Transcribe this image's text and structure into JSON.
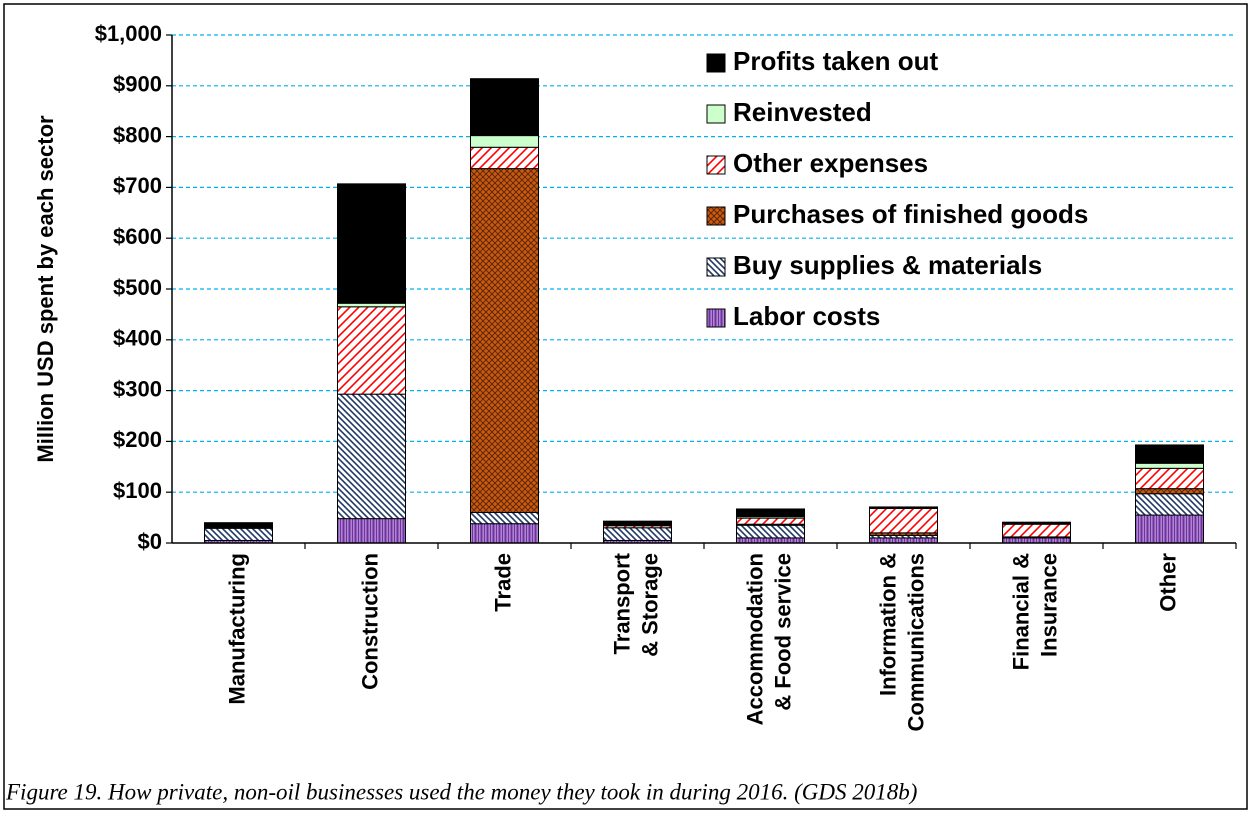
{
  "chart_data": {
    "type": "stacked_bar",
    "ylabel": "Million USD spent by each sector",
    "caption": "Figure 19. How private, non-oil businesses used the money they took in during 2016. (GDS 2018b)",
    "categories": [
      "Manufacturing",
      "Construction",
      "Trade",
      "Transport\n& Storage",
      "Accommodation\n& Food service",
      "Information &\nCommunications",
      "Financial &\nInsurance",
      "Other"
    ],
    "series": [
      {
        "name": "Labor costs",
        "color": "#7030a0",
        "pattern": "vertical",
        "values": [
          5,
          48,
          38,
          5,
          10,
          10,
          10,
          55
        ]
      },
      {
        "name": "Buy supplies & materials",
        "color": "#1f3864",
        "pattern": "diagonal",
        "values": [
          24,
          245,
          22,
          25,
          25,
          5,
          2,
          42
        ]
      },
      {
        "name": "Purchases of finished goods",
        "color": "#c55a11",
        "pattern": "crosshatch",
        "values": [
          0,
          0,
          677,
          0,
          2,
          5,
          0,
          10
        ]
      },
      {
        "name": "Other expenses",
        "color": "#ff0000",
        "pattern": "backdiagonal",
        "values": [
          2,
          172,
          42,
          4,
          12,
          48,
          25,
          40
        ]
      },
      {
        "name": "Reinvested",
        "color": "#ccffcc",
        "pattern": "solid",
        "values": [
          1,
          7,
          23,
          1,
          3,
          1,
          1,
          10
        ]
      },
      {
        "name": "Profits taken out",
        "color": "#000000",
        "pattern": "solid",
        "values": [
          8,
          235,
          112,
          8,
          15,
          2,
          3,
          36
        ]
      }
    ],
    "ylim": [
      0,
      1000
    ],
    "yticks": [
      {
        "value": 0,
        "label": "$0"
      },
      {
        "value": 100,
        "label": "$100"
      },
      {
        "value": 200,
        "label": "$200"
      },
      {
        "value": 300,
        "label": "$300"
      },
      {
        "value": 400,
        "label": "$400"
      },
      {
        "value": 500,
        "label": "$500"
      },
      {
        "value": 600,
        "label": "$600"
      },
      {
        "value": 700,
        "label": "$700"
      },
      {
        "value": 800,
        "label": "$800"
      },
      {
        "value": 900,
        "label": "$900"
      },
      {
        "value": 1000,
        "label": "$1,000"
      }
    ],
    "grid": true,
    "legend": "upper right"
  }
}
